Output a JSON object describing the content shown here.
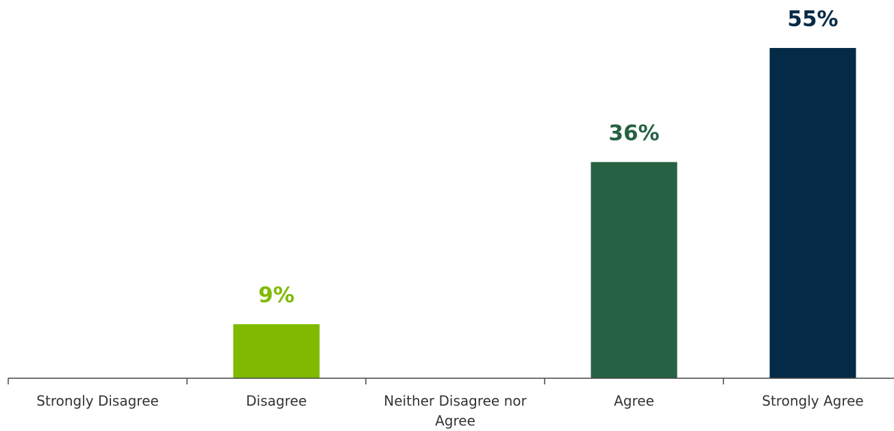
{
  "chart_data": {
    "type": "bar",
    "title": "",
    "xlabel": "",
    "ylabel": "",
    "categories": [
      [
        "Strongly Disagree"
      ],
      [
        "Disagree"
      ],
      [
        "Neither Disagree nor",
        "Agree"
      ],
      [
        "Agree"
      ],
      [
        "Strongly Agree"
      ]
    ],
    "values": [
      0,
      9,
      0,
      36,
      55
    ],
    "value_labels": [
      "",
      "9%",
      "",
      "36%",
      "55%"
    ],
    "colors": [
      "#7fba00",
      "#7fba00",
      "#7fba00",
      "#266143",
      "#052a47"
    ],
    "ylim": [
      0,
      55
    ],
    "grid": false,
    "legend": "none"
  }
}
